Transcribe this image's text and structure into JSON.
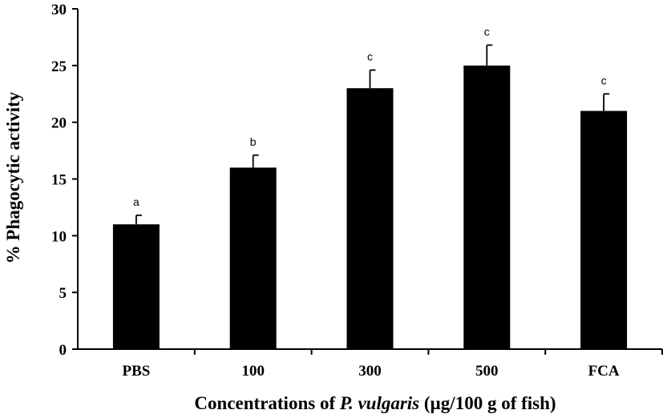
{
  "chart_data": {
    "type": "bar",
    "categories": [
      "PBS",
      "100",
      "300",
      "500",
      "FCA"
    ],
    "values": [
      11,
      16,
      23,
      25,
      21
    ],
    "errors": [
      0.8,
      1.1,
      1.6,
      1.8,
      1.5
    ],
    "significance": [
      "a",
      "b",
      "c",
      "c",
      "c"
    ],
    "ylabel": "% Phagocytic activity",
    "xlabel": {
      "prefix": "Concentrations of ",
      "italic": "P. vulgaris",
      "suffix": " (µg/100 g of fish)"
    },
    "ylim": [
      0,
      30
    ],
    "yticks": [
      0,
      5,
      10,
      15,
      20,
      25,
      30
    ],
    "grid": false,
    "bar_color": "#000000"
  }
}
